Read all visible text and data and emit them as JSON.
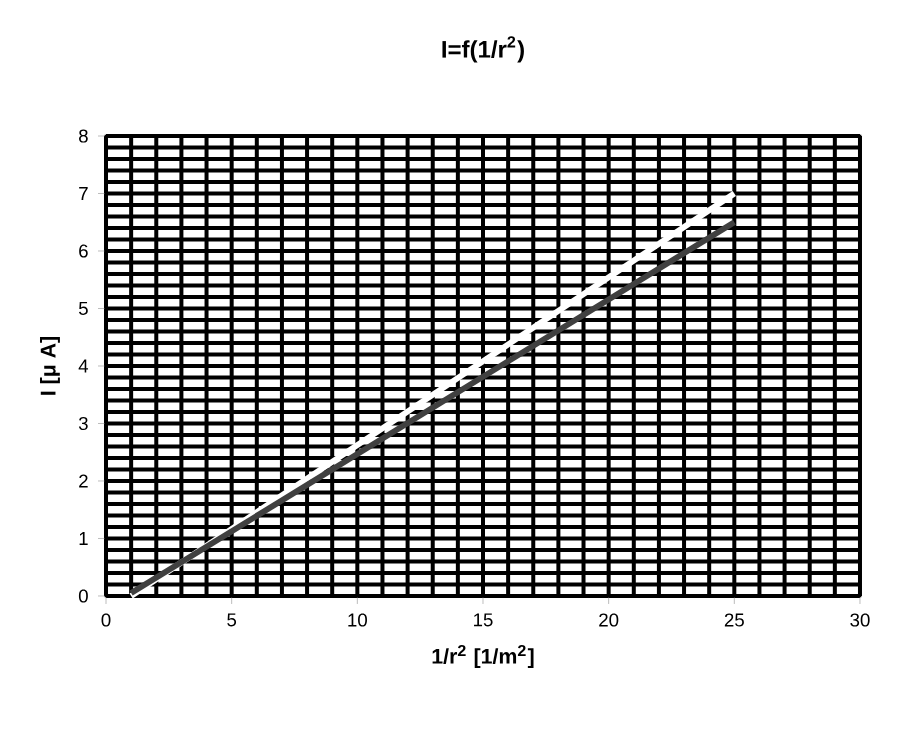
{
  "chart_data": {
    "type": "line",
    "title": "I=f(1/r$^{2}$)",
    "xlabel": "1/r$^{2}$ [1/m$^{2}$]",
    "ylabel": "I [μ A]",
    "x": [
      1,
      25
    ],
    "series": [
      {
        "color": "#ffffff",
        "values": [
          0,
          7
        ]
      },
      {
        "color": "#404040",
        "values": [
          0.05,
          6.5
        ]
      }
    ],
    "xlim": [
      0,
      30
    ],
    "xticks": [
      0,
      5,
      10,
      15,
      20,
      25,
      30
    ],
    "ylim": [
      0,
      8
    ],
    "yticks": [
      0,
      1,
      2,
      3,
      4,
      5,
      6,
      7,
      8
    ],
    "grid": true,
    "marker": "none",
    "line_style": "solid"
  }
}
